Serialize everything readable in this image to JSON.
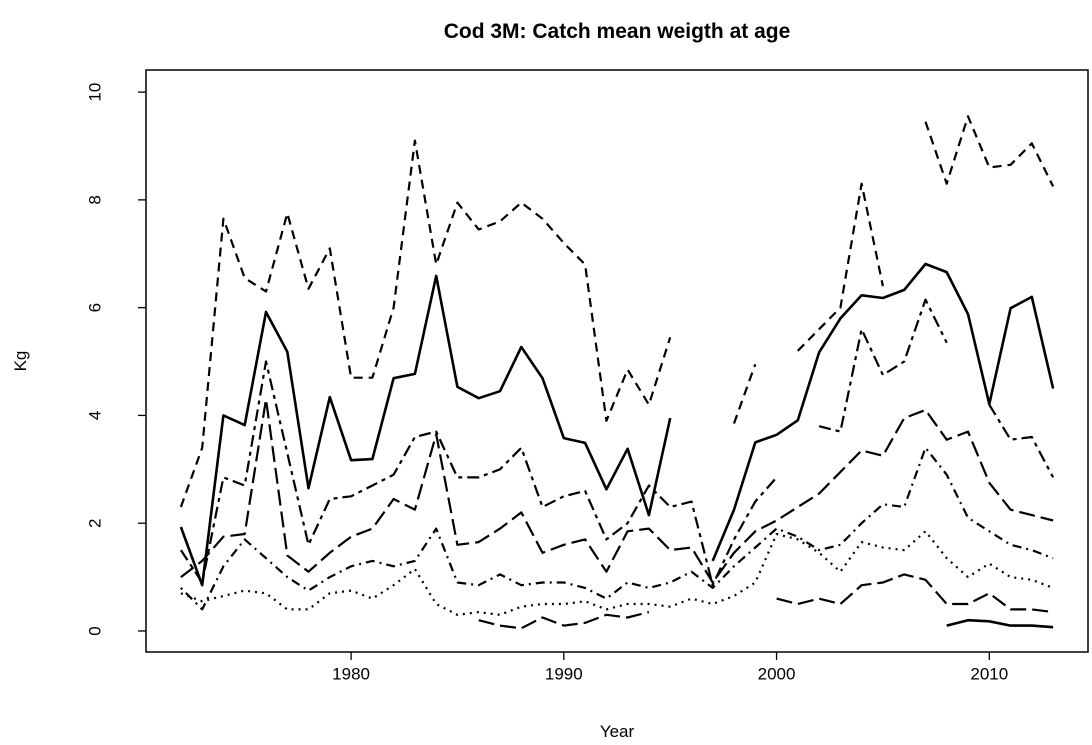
{
  "chart_data": {
    "type": "line",
    "title": "Cod 3M: Catch mean weigth at age",
    "x_label": "Year",
    "y_label": "Kg",
    "x": [
      1972,
      1973,
      1974,
      1975,
      1976,
      1977,
      1978,
      1979,
      1980,
      1981,
      1982,
      1983,
      1984,
      1985,
      1986,
      1987,
      1988,
      1989,
      1990,
      1991,
      1992,
      1993,
      1994,
      1995,
      1996,
      1997,
      1998,
      1999,
      2000,
      2001,
      2002,
      2003,
      2004,
      2005,
      2006,
      2007,
      2008,
      2009,
      2010,
      2011,
      2012,
      2013
    ],
    "series": [
      {
        "color": "#000000",
        "line_style": "solid",
        "values": [
          1.93,
          0.85,
          4.0,
          3.82,
          5.92,
          5.18,
          2.65,
          4.34,
          3.17,
          3.19,
          4.69,
          4.77,
          6.59,
          4.53,
          4.32,
          4.45,
          5.27,
          4.69,
          3.58,
          3.49,
          2.63,
          3.38,
          2.15,
          3.95,
          null,
          1.3,
          2.25,
          3.5,
          3.64,
          3.91,
          5.17,
          5.8,
          6.23,
          6.18,
          6.33,
          6.81,
          6.66,
          5.88,
          4.21,
          5.99,
          6.2,
          4.5
        ]
      },
      {
        "color": "#000000",
        "line_style": "dashed",
        "values": [
          2.3,
          3.4,
          7.65,
          6.55,
          6.3,
          7.75,
          6.35,
          7.1,
          4.7,
          4.7,
          6.0,
          9.1,
          6.8,
          7.95,
          7.45,
          7.6,
          7.95,
          7.65,
          7.2,
          6.8,
          3.9,
          4.85,
          4.2,
          5.45,
          null,
          null,
          3.85,
          4.95,
          null,
          5.2,
          5.6,
          6.0,
          8.3,
          6.4,
          null,
          9.45,
          8.3,
          9.55,
          8.6,
          8.65,
          9.05,
          8.25
        ]
      },
      {
        "color": "#000000",
        "line_style": "twodash",
        "values": [
          1.5,
          0.9,
          2.85,
          2.7,
          5.0,
          3.3,
          1.6,
          2.45,
          2.5,
          2.7,
          2.9,
          3.6,
          3.7,
          2.85,
          2.85,
          3.0,
          3.4,
          2.3,
          2.5,
          2.6,
          1.7,
          2.0,
          2.7,
          2.3,
          2.4,
          0.85,
          1.7,
          2.4,
          2.85,
          null,
          3.8,
          3.7,
          5.6,
          4.75,
          5.0,
          6.15,
          5.35,
          null,
          4.2,
          3.55,
          3.6,
          2.85
        ]
      },
      {
        "color": "#000000",
        "line_style": "longdash",
        "values": [
          1.0,
          1.3,
          1.75,
          1.8,
          4.3,
          1.4,
          1.1,
          1.45,
          1.75,
          1.9,
          2.45,
          2.25,
          3.65,
          1.6,
          1.65,
          1.9,
          2.2,
          1.45,
          1.6,
          1.7,
          1.1,
          1.85,
          1.9,
          1.5,
          1.55,
          0.9,
          1.45,
          1.85,
          2.05,
          2.3,
          2.55,
          2.95,
          3.35,
          3.25,
          3.95,
          4.1,
          3.55,
          3.7,
          2.75,
          2.25,
          2.15,
          2.05
        ]
      },
      {
        "color": "#000000",
        "line_style": "dotdash",
        "values": [
          0.8,
          0.4,
          1.2,
          1.7,
          1.35,
          1.0,
          0.75,
          1.0,
          1.2,
          1.3,
          1.2,
          1.3,
          1.9,
          0.9,
          0.85,
          1.05,
          0.85,
          0.9,
          0.9,
          0.8,
          0.6,
          0.9,
          0.8,
          0.9,
          1.1,
          0.8,
          1.2,
          1.55,
          1.9,
          1.75,
          1.5,
          1.6,
          2.0,
          2.35,
          2.3,
          3.4,
          2.9,
          2.1,
          1.85,
          1.6,
          1.5,
          1.35
        ]
      },
      {
        "color": "#000000",
        "line_style": "dotted",
        "values": [
          0.7,
          0.55,
          0.65,
          0.75,
          0.7,
          0.4,
          0.4,
          0.7,
          0.75,
          0.6,
          0.85,
          1.15,
          0.5,
          0.3,
          0.35,
          0.3,
          0.45,
          0.5,
          0.5,
          0.55,
          0.4,
          0.5,
          0.5,
          0.45,
          0.6,
          0.5,
          0.65,
          0.9,
          1.8,
          1.7,
          1.45,
          1.1,
          1.65,
          1.55,
          1.5,
          1.85,
          1.35,
          1.0,
          1.25,
          1.0,
          0.95,
          0.8
        ]
      },
      {
        "color": "#000000",
        "line_style": "longdash",
        "values": [
          null,
          null,
          null,
          null,
          null,
          null,
          null,
          null,
          null,
          null,
          null,
          null,
          null,
          null,
          0.2,
          0.1,
          0.05,
          0.25,
          0.1,
          0.15,
          0.3,
          0.25,
          0.35,
          null,
          null,
          null,
          null,
          null,
          0.6,
          0.5,
          0.6,
          0.5,
          0.85,
          0.9,
          1.05,
          0.95,
          0.5,
          0.5,
          0.7,
          0.4,
          0.4,
          0.35
        ]
      },
      {
        "color": "#000000",
        "line_style": "solid",
        "values": [
          null,
          null,
          null,
          null,
          null,
          null,
          null,
          null,
          null,
          null,
          null,
          null,
          null,
          null,
          null,
          null,
          null,
          null,
          null,
          null,
          null,
          null,
          null,
          null,
          null,
          null,
          null,
          null,
          null,
          null,
          null,
          null,
          null,
          null,
          null,
          null,
          0.1,
          0.2,
          0.18,
          0.1,
          0.1,
          0.07
        ]
      }
    ],
    "xlim": [
      1970.36,
      2014.64
    ],
    "xticks": [
      1980,
      1990,
      2000,
      2010
    ],
    "ylim": [
      -0.39,
      10.41
    ],
    "yticks": [
      0,
      2,
      4,
      6,
      8,
      10
    ]
  }
}
